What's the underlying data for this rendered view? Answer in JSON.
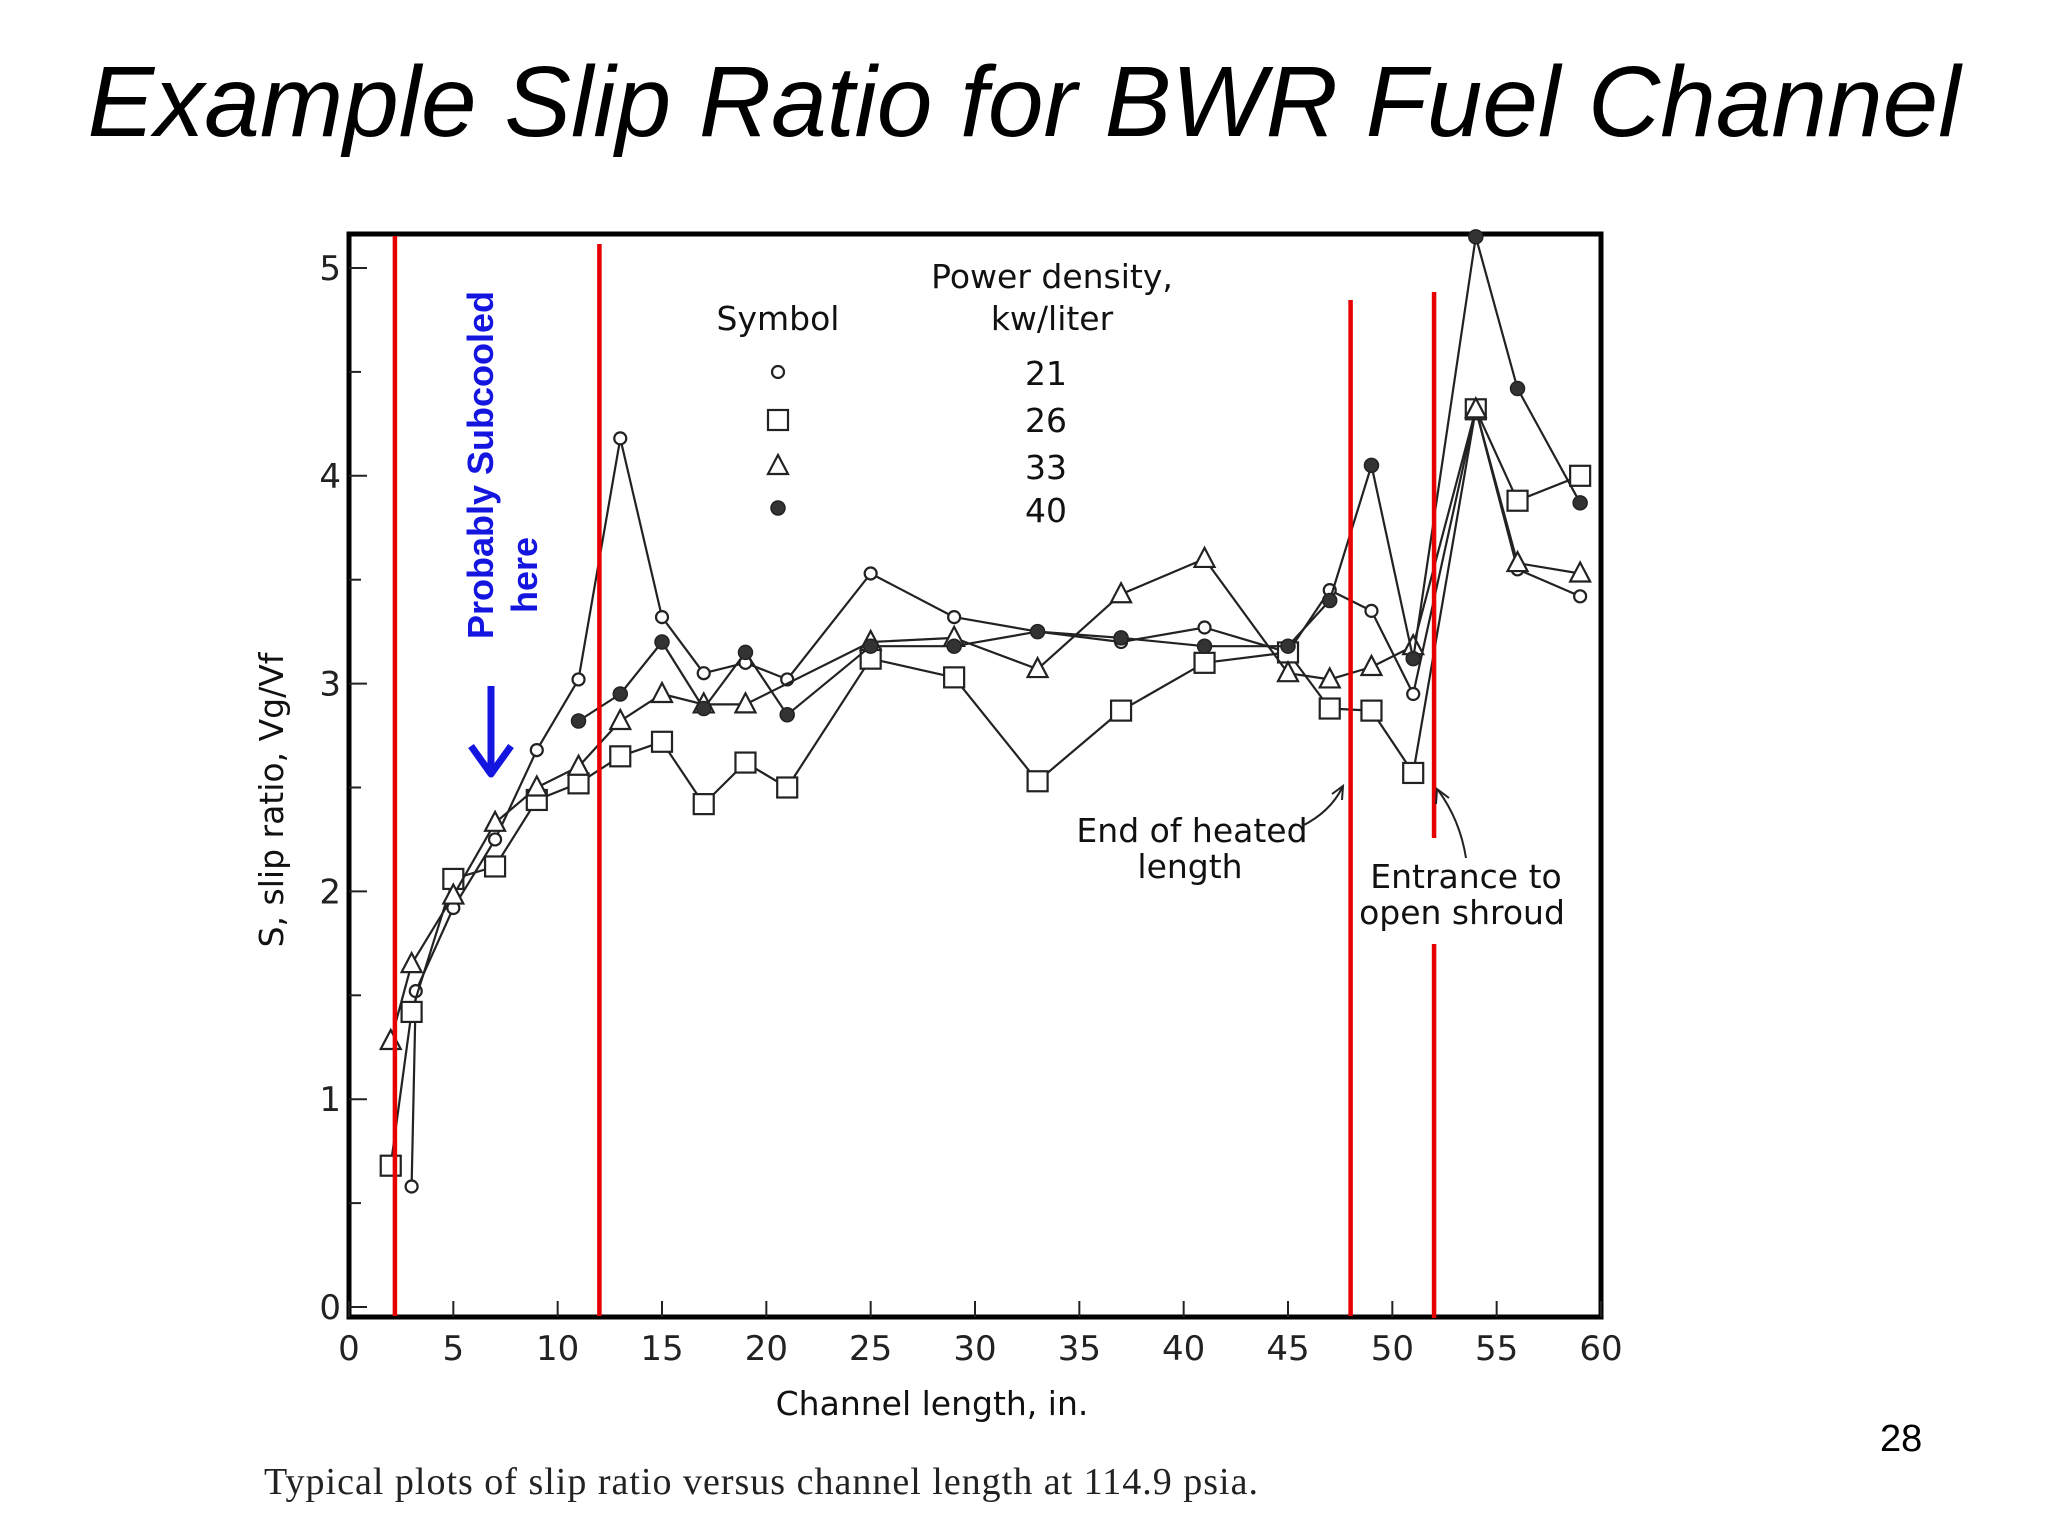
{
  "slide": {
    "title": "Example Slip Ratio for BWR Fuel Channel",
    "page_number": "28"
  },
  "colors": {
    "marker_line": "#e60000",
    "annotation_blue": "#1515e0",
    "series_line": "#222222"
  },
  "chart_data": {
    "type": "line",
    "xlabel": "Channel length, in.",
    "ylabel": "S, slip ratio, Vg/Vf",
    "caption": "Typical plots of slip ratio versus channel length at 114.9 psia.",
    "xlim": [
      0,
      60
    ],
    "ylim": [
      0,
      5.2
    ],
    "x_ticks": [
      "0",
      "5",
      "10",
      "15",
      "20",
      "25",
      "30",
      "35",
      "40",
      "45",
      "50",
      "55",
      "60"
    ],
    "y_ticks": [
      "0",
      "1",
      "2",
      "3",
      "4",
      "5"
    ],
    "grid": false,
    "legend": {
      "placement": "top-center",
      "symbol_header": "Symbol",
      "value_header_line1": "Power density,",
      "value_header_line2": "kw/liter",
      "entries": [
        {
          "marker": "circle-open",
          "value": "21"
        },
        {
          "marker": "square-open",
          "value": "26"
        },
        {
          "marker": "triangle-open",
          "value": "33"
        },
        {
          "marker": "circle-filled",
          "value": "40"
        }
      ]
    },
    "series": [
      {
        "name": "21",
        "marker": "circle-open",
        "points": [
          [
            3,
            0.58
          ],
          [
            3.2,
            1.52
          ],
          [
            5,
            1.92
          ],
          [
            7,
            2.25
          ],
          [
            9,
            2.68
          ],
          [
            11,
            3.02
          ],
          [
            13,
            4.18
          ],
          [
            15,
            3.32
          ],
          [
            17,
            3.05
          ],
          [
            19,
            3.1
          ],
          [
            21,
            3.02
          ],
          [
            25,
            3.53
          ],
          [
            29,
            3.32
          ],
          [
            33,
            3.25
          ],
          [
            37,
            3.2
          ],
          [
            41,
            3.27
          ],
          [
            45,
            3.15
          ],
          [
            47,
            3.45
          ],
          [
            49,
            3.35
          ],
          [
            51,
            2.95
          ],
          [
            54,
            4.32
          ],
          [
            56,
            3.55
          ],
          [
            59,
            3.42
          ]
        ]
      },
      {
        "name": "26",
        "marker": "square-open",
        "points": [
          [
            2,
            0.68
          ],
          [
            3,
            1.42
          ],
          [
            5,
            2.06
          ],
          [
            7,
            2.12
          ],
          [
            9,
            2.44
          ],
          [
            11,
            2.52
          ],
          [
            13,
            2.65
          ],
          [
            15,
            2.72
          ],
          [
            17,
            2.42
          ],
          [
            19,
            2.62
          ],
          [
            21,
            2.5
          ],
          [
            25,
            3.12
          ],
          [
            29,
            3.03
          ],
          [
            33,
            2.53
          ],
          [
            37,
            2.87
          ],
          [
            41,
            3.1
          ],
          [
            45,
            3.15
          ],
          [
            47,
            2.88
          ],
          [
            49,
            2.87
          ],
          [
            51,
            2.57
          ],
          [
            54,
            4.32
          ],
          [
            56,
            3.88
          ],
          [
            59,
            4.0
          ]
        ]
      },
      {
        "name": "33",
        "marker": "triangle-open",
        "points": [
          [
            2,
            1.28
          ],
          [
            3,
            1.65
          ],
          [
            5,
            1.98
          ],
          [
            7,
            2.33
          ],
          [
            9,
            2.5
          ],
          [
            11,
            2.6
          ],
          [
            13,
            2.82
          ],
          [
            15,
            2.95
          ],
          [
            17,
            2.9
          ],
          [
            19,
            2.9
          ],
          [
            25,
            3.2
          ],
          [
            29,
            3.22
          ],
          [
            33,
            3.07
          ],
          [
            37,
            3.43
          ],
          [
            41,
            3.6
          ],
          [
            45,
            3.05
          ],
          [
            47,
            3.02
          ],
          [
            49,
            3.08
          ],
          [
            51,
            3.18
          ],
          [
            54,
            4.32
          ],
          [
            56,
            3.58
          ],
          [
            59,
            3.53
          ]
        ]
      },
      {
        "name": "40",
        "marker": "circle-filled",
        "points": [
          [
            11,
            2.82
          ],
          [
            13,
            2.95
          ],
          [
            15,
            3.2
          ],
          [
            17,
            2.88
          ],
          [
            19,
            3.15
          ],
          [
            21,
            2.85
          ],
          [
            25,
            3.18
          ],
          [
            29,
            3.18
          ],
          [
            33,
            3.25
          ],
          [
            37,
            3.22
          ],
          [
            41,
            3.18
          ],
          [
            45,
            3.18
          ],
          [
            47,
            3.4
          ],
          [
            49,
            4.05
          ],
          [
            51,
            3.12
          ],
          [
            54,
            5.15
          ],
          [
            56,
            4.42
          ],
          [
            59,
            3.87
          ]
        ]
      }
    ],
    "vertical_markers_x": [
      2.2,
      12,
      48,
      52
    ],
    "annotations": {
      "subcooled_line1": "Probably Subcooled",
      "subcooled_line2": "here",
      "end_heated_line1": "End of heated",
      "end_heated_line2": "length",
      "shroud_line1": "Entrance to",
      "shroud_line2": "open shroud"
    }
  }
}
